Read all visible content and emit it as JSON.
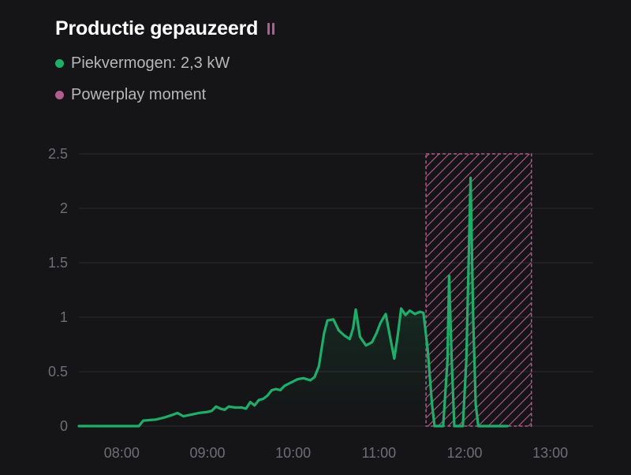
{
  "header": {
    "title": "Productie gepauzeerd",
    "status_icon": "pause-icon"
  },
  "legend": [
    {
      "label": "Piekvermogen: 2,3 kW",
      "color": "#19b06a"
    },
    {
      "label": "Powerplay moment",
      "color": "#b05d8f"
    }
  ],
  "colors": {
    "background": "#151416",
    "line": "#19b06a",
    "powerplay": "#b05d8f",
    "grid": "#2b2a2e",
    "tick": "#6f6f73"
  },
  "chart_data": {
    "type": "line",
    "x_unit": "hours",
    "xlim": [
      7.5,
      13.5
    ],
    "ylim": [
      0,
      2.5
    ],
    "grid": true,
    "y_ticks": [
      {
        "value": 0,
        "label": "0"
      },
      {
        "value": 0.5,
        "label": "0.5"
      },
      {
        "value": 1,
        "label": "1"
      },
      {
        "value": 1.5,
        "label": "1.5"
      },
      {
        "value": 2,
        "label": "2"
      },
      {
        "value": 2.5,
        "label": "2.5"
      }
    ],
    "x_ticks": [
      {
        "value": 8,
        "label": "08:00"
      },
      {
        "value": 9,
        "label": "09:00"
      },
      {
        "value": 10,
        "label": "10:00"
      },
      {
        "value": 11,
        "label": "11:00"
      },
      {
        "value": 12,
        "label": "12:00"
      },
      {
        "value": 13,
        "label": "13:00"
      }
    ],
    "powerplay_window": {
      "start": 11.55,
      "end": 12.78
    },
    "series": [
      {
        "name": "Piekvermogen",
        "points": [
          [
            7.5,
            0
          ],
          [
            8.2,
            0
          ],
          [
            8.25,
            0.05
          ],
          [
            8.4,
            0.06
          ],
          [
            8.5,
            0.08
          ],
          [
            8.58,
            0.1
          ],
          [
            8.65,
            0.12
          ],
          [
            8.72,
            0.09
          ],
          [
            8.78,
            0.1
          ],
          [
            8.9,
            0.12
          ],
          [
            9.0,
            0.13
          ],
          [
            9.05,
            0.14
          ],
          [
            9.1,
            0.18
          ],
          [
            9.15,
            0.16
          ],
          [
            9.2,
            0.15
          ],
          [
            9.25,
            0.18
          ],
          [
            9.32,
            0.17
          ],
          [
            9.4,
            0.17
          ],
          [
            9.45,
            0.16
          ],
          [
            9.5,
            0.22
          ],
          [
            9.55,
            0.19
          ],
          [
            9.6,
            0.24
          ],
          [
            9.65,
            0.25
          ],
          [
            9.7,
            0.28
          ],
          [
            9.75,
            0.33
          ],
          [
            9.8,
            0.34
          ],
          [
            9.85,
            0.33
          ],
          [
            9.9,
            0.37
          ],
          [
            9.95,
            0.39
          ],
          [
            10.0,
            0.41
          ],
          [
            10.05,
            0.43
          ],
          [
            10.12,
            0.44
          ],
          [
            10.2,
            0.42
          ],
          [
            10.25,
            0.45
          ],
          [
            10.3,
            0.55
          ],
          [
            10.33,
            0.7
          ],
          [
            10.36,
            0.85
          ],
          [
            10.4,
            0.97
          ],
          [
            10.47,
            0.98
          ],
          [
            10.53,
            0.88
          ],
          [
            10.6,
            0.83
          ],
          [
            10.66,
            0.8
          ],
          [
            10.7,
            0.9
          ],
          [
            10.73,
            1.07
          ],
          [
            10.78,
            0.82
          ],
          [
            10.85,
            0.74
          ],
          [
            10.92,
            0.77
          ],
          [
            10.97,
            0.85
          ],
          [
            11.02,
            0.95
          ],
          [
            11.08,
            1.03
          ],
          [
            11.13,
            0.82
          ],
          [
            11.18,
            0.62
          ],
          [
            11.22,
            0.83
          ],
          [
            11.26,
            1.08
          ],
          [
            11.31,
            1.02
          ],
          [
            11.36,
            1.06
          ],
          [
            11.42,
            1.03
          ],
          [
            11.48,
            1.05
          ],
          [
            11.52,
            1.04
          ],
          [
            11.57,
            0.7
          ],
          [
            11.62,
            0.2
          ],
          [
            11.65,
            0
          ],
          [
            11.75,
            0
          ],
          [
            11.8,
            0.6
          ],
          [
            11.82,
            1.38
          ],
          [
            11.85,
            0.6
          ],
          [
            11.88,
            0
          ],
          [
            11.98,
            0
          ],
          [
            12.02,
            0.6
          ],
          [
            12.07,
            2.28
          ],
          [
            12.1,
            1.0
          ],
          [
            12.13,
            0.2
          ],
          [
            12.16,
            0
          ],
          [
            12.5,
            0
          ]
        ]
      }
    ]
  }
}
